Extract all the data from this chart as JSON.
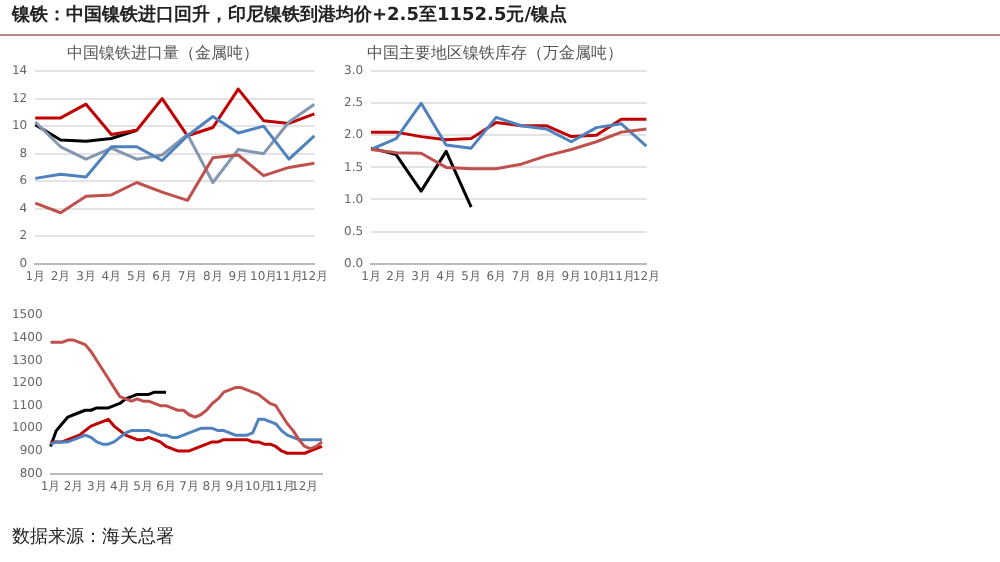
{
  "chart_data": [
    {
      "type": "other",
      "title": "镍铁：中国镍铁进口回升，印尼镍铁到港均价+2.5至1152.5元/镍点",
      "annotations": [
        "数据来源：海关总署"
      ]
    },
    {
      "type": "line",
      "title": "中国镍铁进口量（金属吨）",
      "categories": [
        "1月",
        "2月",
        "3月",
        "4月",
        "5月",
        "6月",
        "7月",
        "8月",
        "9月",
        "10月",
        "11月",
        "12月"
      ],
      "ylim": [
        0,
        14
      ],
      "yticks": [
        0,
        2,
        4,
        6,
        8,
        10,
        12,
        14
      ],
      "grid": "y",
      "legend": false,
      "marker": "none",
      "series": [
        {
          "color": "#c0504d",
          "values": [
            4.4,
            3.7,
            4.9,
            5,
            5.9,
            5.2,
            4.6,
            7.7,
            7.9,
            6.4,
            7,
            7.3
          ]
        },
        {
          "color": "#4f81bd",
          "values": [
            6.2,
            6.5,
            6.3,
            8.5,
            8.5,
            7.5,
            9.3,
            10.7,
            9.5,
            10,
            7.6,
            9.3
          ]
        },
        {
          "color": "#8497b0",
          "values": [
            10.3,
            8.5,
            7.6,
            8.4,
            7.6,
            7.9,
            9.4,
            5.9,
            8.3,
            8,
            10.3,
            11.6
          ]
        },
        {
          "color": "#c00000",
          "values": [
            10.6,
            10.6,
            11.6,
            9.4,
            9.7,
            12,
            9.3,
            9.9,
            12.7,
            10.4,
            10.2,
            10.9
          ]
        },
        {
          "color": "#000000",
          "values": [
            10.1,
            9,
            8.9,
            9.1,
            9.7,
            null,
            null,
            null,
            null,
            null,
            null,
            null
          ]
        }
      ]
    },
    {
      "type": "line",
      "title": "中国主要地区镍铁库存（万金属吨）",
      "categories": [
        "1月",
        "2月",
        "3月",
        "4月",
        "5月",
        "6月",
        "7月",
        "8月",
        "9月",
        "10月",
        "11月",
        "12月"
      ],
      "ylim": [
        0,
        3
      ],
      "yticks": [
        {
          "value": 0,
          "label": "0.0"
        },
        {
          "value": 0.5,
          "label": "0.5"
        },
        {
          "value": 1,
          "label": "1.0"
        },
        {
          "value": 1.5,
          "label": "1.5"
        },
        {
          "value": 2,
          "label": "2.0"
        },
        {
          "value": 2.5,
          "label": "2.5"
        },
        {
          "value": 3,
          "label": "3.0"
        }
      ],
      "grid": "y",
      "legend": false,
      "marker": "none",
      "series": [
        {
          "color": "#c0504d",
          "values": [
            1.78,
            1.73,
            1.72,
            1.5,
            1.48,
            1.48,
            1.55,
            1.68,
            1.78,
            1.9,
            2.05,
            2.1
          ]
        },
        {
          "color": "#4f81bd",
          "values": [
            1.78,
            1.95,
            2.5,
            1.85,
            1.8,
            2.28,
            2.15,
            2.1,
            1.9,
            2.12,
            2.18,
            1.83
          ]
        },
        {
          "color": "#c00000",
          "values": [
            2.05,
            2.05,
            1.98,
            1.93,
            1.95,
            2.2,
            2.15,
            2.15,
            1.98,
            2.0,
            2.25,
            2.25
          ]
        },
        {
          "color": "#000000",
          "values": [
            1.8,
            1.7,
            1.13,
            1.75,
            0.88,
            null,
            null,
            null,
            null,
            null,
            null,
            null
          ]
        }
      ]
    },
    {
      "type": "line",
      "categories": [
        "1月",
        null,
        null,
        null,
        "2月",
        null,
        null,
        null,
        "3月",
        null,
        null,
        null,
        "4月",
        null,
        null,
        null,
        "5月",
        null,
        null,
        null,
        "6月",
        null,
        null,
        null,
        "7月",
        null,
        null,
        null,
        "8月",
        null,
        null,
        null,
        "9月",
        null,
        null,
        null,
        "10月",
        null,
        null,
        null,
        "11月",
        null,
        null,
        null,
        "12月",
        null,
        null,
        null
      ],
      "ylim": [
        800,
        1500
      ],
      "yticks": [
        800,
        900,
        1000,
        1100,
        1200,
        1300,
        1400,
        1500
      ],
      "grid": false,
      "legend": false,
      "marker": "none",
      "series": [
        {
          "color": "#c0504d",
          "values": [
            1380,
            1380,
            1380,
            1390,
            1390,
            1380,
            1370,
            1340,
            1300,
            1260,
            1220,
            1180,
            1140,
            1130,
            1120,
            1130,
            1120,
            1120,
            1110,
            1100,
            1100,
            1090,
            1080,
            1080,
            1060,
            1050,
            1060,
            1080,
            1110,
            1130,
            1160,
            1170,
            1180,
            1180,
            1170,
            1160,
            1150,
            1130,
            1110,
            1100,
            1060,
            1020,
            990,
            950,
            920,
            910,
            920,
            940
          ]
        },
        {
          "color": "#4f81bd",
          "values": [
            930,
            940,
            940,
            940,
            950,
            960,
            970,
            960,
            940,
            930,
            930,
            940,
            960,
            980,
            990,
            990,
            990,
            990,
            980,
            970,
            970,
            960,
            960,
            970,
            980,
            990,
            1000,
            1000,
            1000,
            990,
            990,
            980,
            970,
            970,
            970,
            980,
            1040,
            1040,
            1030,
            1020,
            990,
            970,
            960,
            950,
            950,
            950,
            950,
            950
          ]
        },
        {
          "color": "#c00000",
          "values": [
            940,
            940,
            940,
            950,
            960,
            970,
            990,
            1010,
            1020,
            1030,
            1040,
            1010,
            990,
            970,
            960,
            950,
            950,
            960,
            950,
            940,
            920,
            910,
            900,
            900,
            900,
            910,
            920,
            930,
            940,
            940,
            950,
            950,
            950,
            950,
            950,
            940,
            940,
            930,
            930,
            920,
            900,
            890,
            890,
            890,
            890,
            900,
            910,
            920
          ]
        },
        {
          "color": "#000000",
          "values": [
            920,
            990,
            1020,
            1050,
            1060,
            1070,
            1080,
            1080,
            1090,
            1090,
            1090,
            1100,
            1110,
            1130,
            1140,
            1150,
            1150,
            1150,
            1160,
            1160,
            1160,
            null,
            null,
            null,
            null,
            null,
            null,
            null,
            null,
            null,
            null,
            null,
            null,
            null,
            null,
            null,
            null,
            null,
            null,
            null,
            null,
            null,
            null,
            null,
            null,
            null,
            null,
            null
          ]
        }
      ]
    }
  ]
}
